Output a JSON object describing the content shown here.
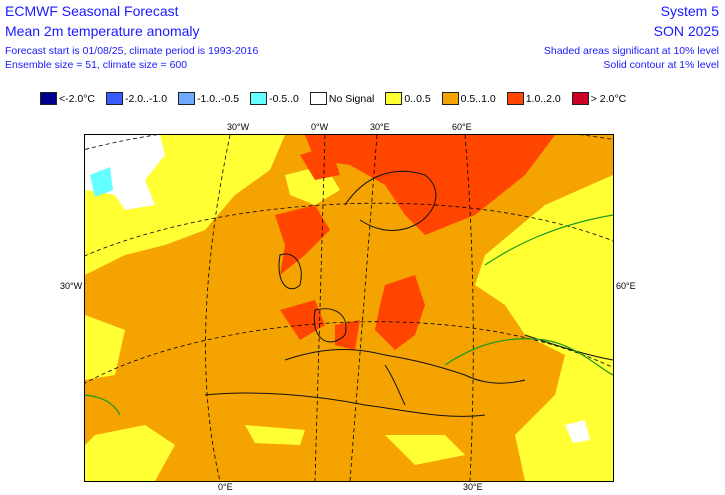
{
  "header": {
    "title": "ECMWF Seasonal Forecast",
    "subtitle": "Mean 2m temperature anomaly",
    "forecast_info": "Forecast start is 01/08/25, climate period is 1993-2016",
    "ensemble_info": "Ensemble size = 51, climate size = 600",
    "system": "System 5",
    "season": "SON 2025",
    "sig10": "Shaded areas significant at 10% level",
    "sig1": "Solid contour at 1% level"
  },
  "legend": [
    {
      "label": "<-2.0°C",
      "color": "#00008b"
    },
    {
      "label": "-2.0..-1.0",
      "color": "#3a5cff"
    },
    {
      "label": "-1.0..-0.5",
      "color": "#6fa8ff"
    },
    {
      "label": "-0.5..0",
      "color": "#66ffff"
    },
    {
      "label": "No Signal",
      "color": "#ffffff"
    },
    {
      "label": "0..0.5",
      "color": "#ffff33"
    },
    {
      "label": "0.5..1.0",
      "color": "#f5a300"
    },
    {
      "label": "1.0..2.0",
      "color": "#ff4500"
    },
    {
      "label": "> 2.0°C",
      "color": "#cc0022"
    }
  ],
  "graticule": {
    "top": [
      "30°W",
      "0°W",
      "30°E",
      "60°E"
    ],
    "left": "30°W",
    "right": "60°E",
    "bottom": [
      "0°E",
      "30°E"
    ]
  }
}
